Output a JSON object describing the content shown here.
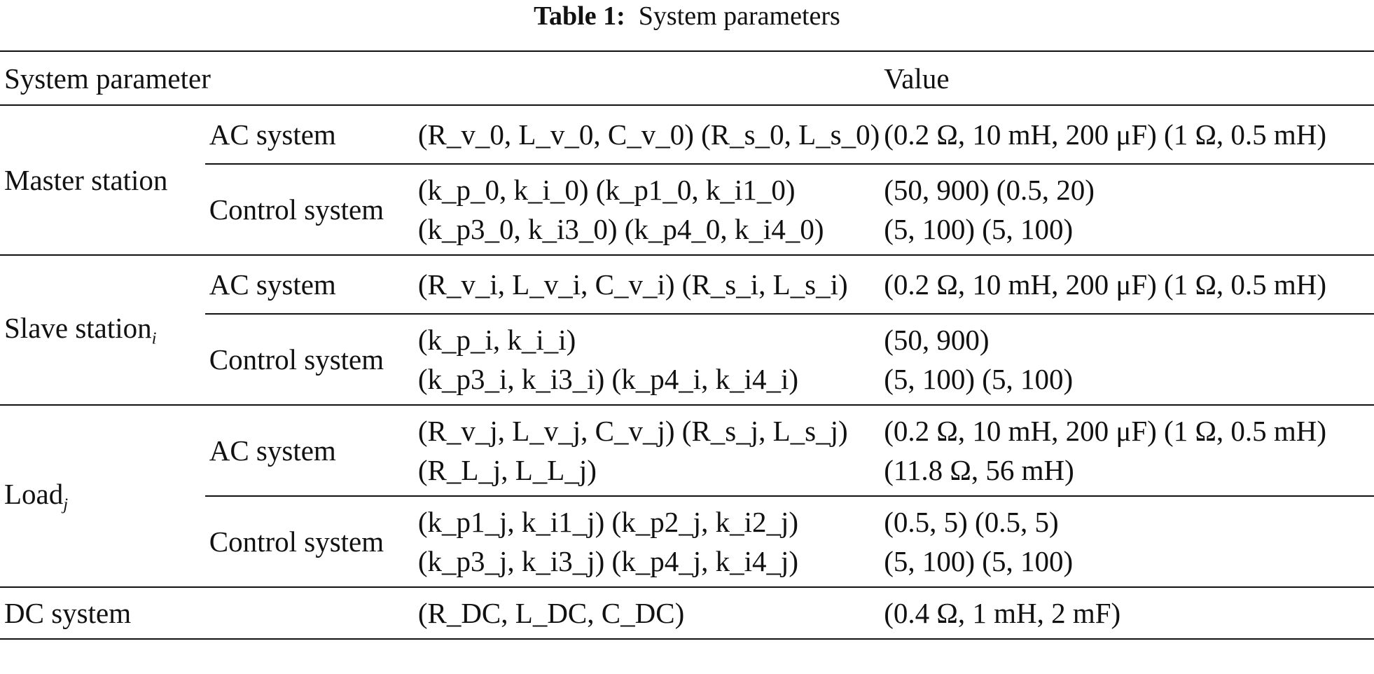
{
  "caption": {
    "label": "Table 1:",
    "title": "System parameters"
  },
  "header": {
    "parameter": "System parameter",
    "value": "Value"
  },
  "groups": {
    "master": {
      "name": "Master station",
      "ac": {
        "label": "AC system",
        "symbols": "(R_v_0, L_v_0, C_v_0) (R_s_0, L_s_0)",
        "value": "(0.2 Ω, 10 mH, 200 μF) (1 Ω, 0.5 mH)"
      },
      "control": {
        "label": "Control system",
        "symbols_1": "(k_p_0, k_i_0) (k_p1_0, k_i1_0)",
        "symbols_2": "(k_p3_0, k_i3_0) (k_p4_0, k_i4_0)",
        "value_1": "(50, 900) (0.5, 20)",
        "value_2": "(5, 100) (5, 100)"
      }
    },
    "slave": {
      "name": "Slave station",
      "name_sub": "i",
      "ac": {
        "label": "AC system",
        "symbols": "(R_v_i, L_v_i, C_v_i) (R_s_i, L_s_i)",
        "value": "(0.2 Ω, 10 mH, 200 μF) (1 Ω, 0.5 mH)"
      },
      "control": {
        "label": "Control system",
        "symbols_1": "(k_p_i, k_i_i)",
        "symbols_2": "(k_p3_i, k_i3_i) (k_p4_i, k_i4_i)",
        "value_1": "(50, 900)",
        "value_2": "(5, 100) (5, 100)"
      }
    },
    "load": {
      "name": "Load",
      "name_sub": "j",
      "ac": {
        "label": "AC system",
        "symbols_1": "(R_v_j, L_v_j, C_v_j) (R_s_j, L_s_j)",
        "symbols_2": "(R_L_j, L_L_j)",
        "value_1": "(0.2 Ω, 10 mH, 200 μF) (1 Ω, 0.5 mH)",
        "value_2": "(11.8 Ω, 56 mH)"
      },
      "control": {
        "label": "Control system",
        "symbols_1": "(k_p1_j, k_i1_j) (k_p2_j, k_i2_j)",
        "symbols_2": "(k_p3_j, k_i3_j) (k_p4_j, k_i4_j)",
        "value_1": "(0.5, 5) (0.5, 5)",
        "value_2": "(5, 100) (5, 100)"
      }
    },
    "dc": {
      "name": "DC system",
      "symbols": "(R_DC, L_DC, C_DC)",
      "value": "(0.4 Ω, 1 mH, 2 mF)"
    }
  }
}
